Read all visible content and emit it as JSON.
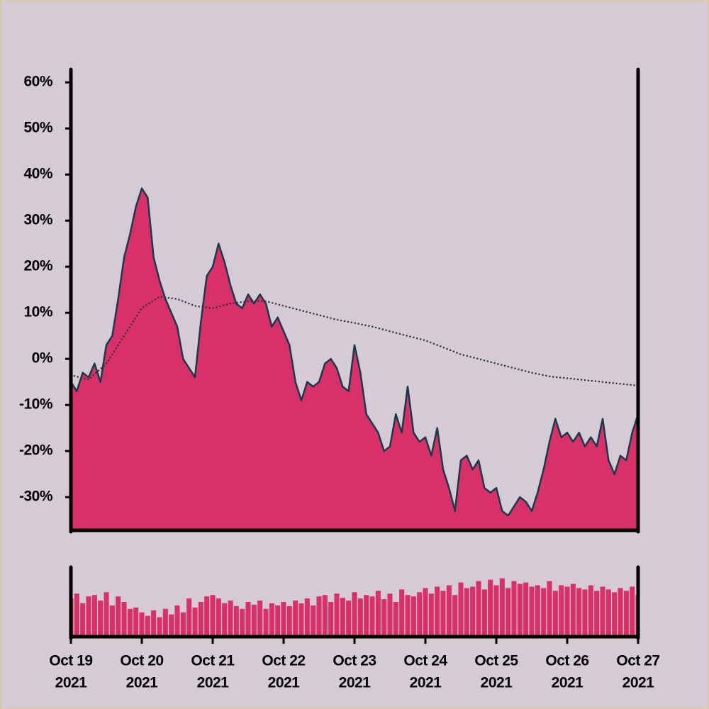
{
  "chart_data": [
    {
      "type": "area",
      "x": [
        "2021-10-19T00:00",
        "2021-10-19T02:00",
        "2021-10-19T04:00",
        "2021-10-19T06:00",
        "2021-10-19T08:00",
        "2021-10-19T10:00",
        "2021-10-19T12:00",
        "2021-10-19T14:00",
        "2021-10-19T16:00",
        "2021-10-19T18:00",
        "2021-10-19T20:00",
        "2021-10-19T22:00",
        "2021-10-20T00:00",
        "2021-10-20T02:00",
        "2021-10-20T04:00",
        "2021-10-20T06:00",
        "2021-10-20T08:00",
        "2021-10-20T10:00",
        "2021-10-20T12:00",
        "2021-10-20T14:00",
        "2021-10-20T16:00",
        "2021-10-20T18:00",
        "2021-10-20T20:00",
        "2021-10-20T22:00",
        "2021-10-21T00:00",
        "2021-10-21T02:00",
        "2021-10-21T04:00",
        "2021-10-21T06:00",
        "2021-10-21T08:00",
        "2021-10-21T10:00",
        "2021-10-21T12:00",
        "2021-10-21T14:00",
        "2021-10-21T16:00",
        "2021-10-21T18:00",
        "2021-10-21T20:00",
        "2021-10-21T22:00",
        "2021-10-22T00:00",
        "2021-10-22T02:00",
        "2021-10-22T04:00",
        "2021-10-22T06:00",
        "2021-10-22T08:00",
        "2021-10-22T10:00",
        "2021-10-22T12:00",
        "2021-10-22T14:00",
        "2021-10-22T16:00",
        "2021-10-22T18:00",
        "2021-10-22T20:00",
        "2021-10-22T22:00",
        "2021-10-23T00:00",
        "2021-10-23T02:00",
        "2021-10-23T04:00",
        "2021-10-23T06:00",
        "2021-10-23T08:00",
        "2021-10-23T10:00",
        "2021-10-23T12:00",
        "2021-10-23T14:00",
        "2021-10-23T16:00",
        "2021-10-23T18:00",
        "2021-10-23T20:00",
        "2021-10-23T22:00",
        "2021-10-24T00:00",
        "2021-10-24T02:00",
        "2021-10-24T04:00",
        "2021-10-24T06:00",
        "2021-10-24T08:00",
        "2021-10-24T10:00",
        "2021-10-24T12:00",
        "2021-10-24T14:00",
        "2021-10-24T16:00",
        "2021-10-24T18:00",
        "2021-10-24T20:00",
        "2021-10-24T22:00",
        "2021-10-25T00:00",
        "2021-10-25T02:00",
        "2021-10-25T04:00",
        "2021-10-25T06:00",
        "2021-10-25T08:00",
        "2021-10-25T10:00",
        "2021-10-25T12:00",
        "2021-10-25T14:00",
        "2021-10-25T16:00",
        "2021-10-25T18:00",
        "2021-10-25T20:00",
        "2021-10-25T22:00",
        "2021-10-26T00:00",
        "2021-10-26T02:00",
        "2021-10-26T04:00",
        "2021-10-26T06:00",
        "2021-10-26T08:00",
        "2021-10-26T10:00",
        "2021-10-26T12:00",
        "2021-10-26T14:00",
        "2021-10-26T16:00",
        "2021-10-26T18:00",
        "2021-10-26T20:00",
        "2021-10-26T22:00",
        "2021-10-27T00:00"
      ],
      "series": [
        {
          "color": "#d9306a",
          "line_color": "#183a4c",
          "values": [
            -5,
            -7,
            -3,
            -4,
            -1,
            -5,
            3,
            5,
            13,
            22,
            27,
            33,
            37,
            35,
            22,
            17,
            13,
            10,
            7,
            0,
            -2,
            -4,
            8,
            18,
            20,
            25,
            21,
            16,
            12,
            11,
            14,
            12,
            14,
            12,
            7,
            9,
            6,
            3,
            -5,
            -9,
            -5,
            -6,
            -5,
            -1,
            0,
            -2,
            -6,
            -7,
            3,
            -3,
            -12,
            -14,
            -16,
            -20,
            -19,
            -12,
            -16,
            -6,
            -16,
            -18,
            -17,
            -21,
            -15,
            -24,
            -28,
            -33,
            -22,
            -21,
            -24,
            -22,
            -28,
            -29,
            -28,
            -33,
            -34,
            -32,
            -30,
            -31,
            -33,
            -29,
            -24,
            -18,
            -13,
            -17,
            -16,
            -18,
            -16,
            -19,
            -17,
            -19,
            -13,
            -22,
            -25,
            -21,
            -22,
            -16,
            -12
          ]
        },
        {
          "color": "#333333",
          "style": "dotted",
          "x": [
            "2021-10-19T00:00",
            "2021-10-19T06:00",
            "2021-10-19T12:00",
            "2021-10-19T18:00",
            "2021-10-20T00:00",
            "2021-10-20T06:00",
            "2021-10-20T12:00",
            "2021-10-20T18:00",
            "2021-10-21T00:00",
            "2021-10-21T06:00",
            "2021-10-21T12:00",
            "2021-10-21T18:00",
            "2021-10-22T00:00",
            "2021-10-22T06:00",
            "2021-10-22T12:00",
            "2021-10-22T18:00",
            "2021-10-23T00:00",
            "2021-10-23T06:00",
            "2021-10-23T12:00",
            "2021-10-23T18:00",
            "2021-10-24T00:00",
            "2021-10-24T06:00",
            "2021-10-24T12:00",
            "2021-10-24T18:00",
            "2021-10-25T00:00",
            "2021-10-25T06:00",
            "2021-10-25T12:00",
            "2021-10-25T18:00",
            "2021-10-26T00:00",
            "2021-10-26T06:00",
            "2021-10-26T12:00",
            "2021-10-26T18:00",
            "2021-10-27T00:00"
          ],
          "values": [
            -3.5,
            -4.5,
            -1,
            5,
            11,
            13.5,
            13,
            11.5,
            11,
            12,
            12.5,
            12.5,
            11.5,
            10.5,
            9.5,
            8.5,
            7.8,
            7,
            6,
            5,
            4,
            2.5,
            1,
            0,
            -1,
            -2,
            -3,
            -3.8,
            -4.2,
            -4.6,
            -5,
            -5.4,
            -5.8
          ]
        }
      ],
      "ylim": [
        -37.2,
        62.8
      ],
      "yticks": [
        {
          "value": -30,
          "label": "-30%"
        },
        {
          "value": -20,
          "label": "-20%"
        },
        {
          "value": -10,
          "label": "-10%"
        },
        {
          "value": 0,
          "label": "0%"
        },
        {
          "value": 10,
          "label": "10%"
        },
        {
          "value": 20,
          "label": "20%"
        },
        {
          "value": 30,
          "label": "30%"
        },
        {
          "value": 40,
          "label": "40%"
        },
        {
          "value": 50,
          "label": "50%"
        },
        {
          "value": 60,
          "label": "60%"
        }
      ]
    },
    {
      "type": "bar",
      "color": "#d9306a",
      "values": [
        55,
        62,
        48,
        58,
        60,
        52,
        64,
        45,
        58,
        50,
        40,
        42,
        35,
        30,
        38,
        28,
        40,
        32,
        45,
        35,
        55,
        42,
        50,
        58,
        60,
        55,
        48,
        52,
        44,
        40,
        50,
        46,
        52,
        40,
        48,
        45,
        50,
        44,
        52,
        48,
        55,
        45,
        58,
        60,
        50,
        62,
        56,
        52,
        64,
        55,
        60,
        58,
        66,
        54,
        62,
        50,
        68,
        60,
        58,
        64,
        70,
        62,
        72,
        66,
        74,
        60,
        78,
        70,
        72,
        80,
        68,
        82,
        74,
        84,
        70,
        80,
        76,
        78,
        72,
        74,
        70,
        80,
        66,
        74,
        72,
        76,
        70,
        68,
        74,
        66,
        72,
        68,
        64,
        70,
        66,
        72,
        60
      ],
      "ylim": [
        0,
        100
      ],
      "xticks": [
        {
          "value": "2021-10-19T00:00",
          "label": [
            "Oct 19",
            "2021"
          ]
        },
        {
          "value": "2021-10-20T00:00",
          "label": [
            "Oct 20",
            "2021"
          ]
        },
        {
          "value": "2021-10-21T00:00",
          "label": [
            "Oct 21",
            "2021"
          ]
        },
        {
          "value": "2021-10-22T00:00",
          "label": [
            "Oct 22",
            "2021"
          ]
        },
        {
          "value": "2021-10-23T00:00",
          "label": [
            "Oct 23",
            "2021"
          ]
        },
        {
          "value": "2021-10-24T00:00",
          "label": [
            "Oct 24",
            "2021"
          ]
        },
        {
          "value": "2021-10-25T00:00",
          "label": [
            "Oct 25",
            "2021"
          ]
        },
        {
          "value": "2021-10-26T00:00",
          "label": [
            "Oct 26",
            "2021"
          ]
        },
        {
          "value": "2021-10-27T00:00",
          "label": [
            "Oct 27",
            "2021"
          ]
        }
      ]
    }
  ]
}
